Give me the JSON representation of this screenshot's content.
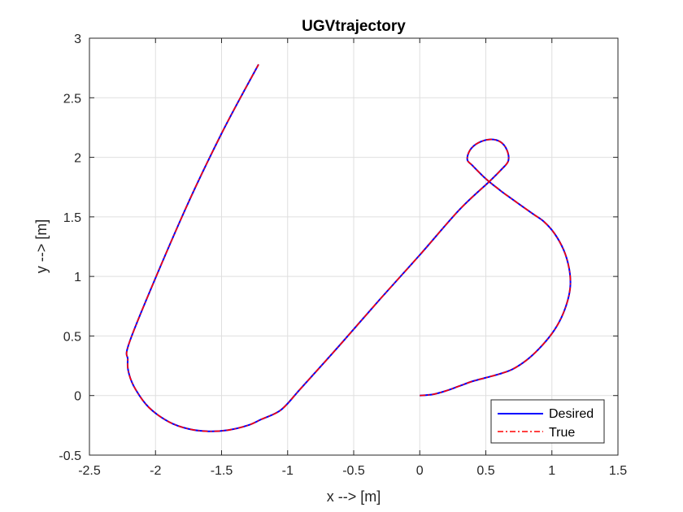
{
  "chart_data": {
    "type": "line",
    "title": "UGVtrajectory",
    "xlabel": "x --> [m]",
    "ylabel": "y --> [m]",
    "xlim": [
      -2.5,
      1.5
    ],
    "ylim": [
      -0.5,
      3
    ],
    "xticks": [
      -2.5,
      -2,
      -1.5,
      -1,
      -0.5,
      0,
      0.5,
      1,
      1.5
    ],
    "yticks": [
      -0.5,
      0,
      0.5,
      1,
      1.5,
      2,
      2.5,
      3
    ],
    "xtick_labels": [
      "-2.5",
      "-2",
      "-1.5",
      "-1",
      "-0.5",
      "0",
      "0.5",
      "1",
      "1.5"
    ],
    "ytick_labels": [
      "-0.5",
      "0",
      "0.5",
      "1",
      "1.5",
      "2",
      "2.5",
      "3"
    ],
    "grid": true,
    "legend_position": "bottom-right",
    "series": [
      {
        "name": "Desired",
        "color": "#0000ff",
        "style": "solid",
        "x": [
          0.0,
          0.1,
          0.2,
          0.3,
          0.4,
          0.5,
          0.6,
          0.7,
          0.8,
          0.9,
          1.0,
          1.07,
          1.12,
          1.14,
          1.13,
          1.09,
          1.02,
          0.94,
          0.85,
          0.66,
          0.6,
          0.5,
          0.4,
          0.36,
          0.38,
          0.44,
          0.53,
          0.61,
          0.66,
          0.67,
          0.62,
          0.53,
          0.3,
          0.0,
          -0.3,
          -0.6,
          -0.9,
          -1.05,
          -1.2,
          -1.3,
          -1.45,
          -1.6,
          -1.75,
          -1.9,
          -2.05,
          -2.15,
          -2.2,
          -2.21,
          -2.18,
          -1.8,
          -1.5,
          -1.22
        ],
        "y": [
          0.0,
          0.01,
          0.04,
          0.08,
          0.12,
          0.15,
          0.18,
          0.22,
          0.29,
          0.39,
          0.52,
          0.65,
          0.8,
          0.93,
          1.07,
          1.22,
          1.36,
          1.46,
          1.53,
          1.68,
          1.73,
          1.82,
          1.93,
          1.98,
          2.06,
          2.12,
          2.15,
          2.13,
          2.06,
          1.97,
          1.9,
          1.8,
          1.56,
          1.18,
          0.81,
          0.43,
          0.06,
          -0.12,
          -0.2,
          -0.25,
          -0.29,
          -0.3,
          -0.28,
          -0.22,
          -0.1,
          0.05,
          0.18,
          0.3,
          0.5,
          1.5,
          2.2,
          2.78
        ]
      },
      {
        "name": "True",
        "color": "#ff0000",
        "style": "dash-dot",
        "x": [
          0.0,
          0.1,
          0.2,
          0.3,
          0.4,
          0.5,
          0.6,
          0.7,
          0.8,
          0.9,
          1.0,
          1.07,
          1.12,
          1.14,
          1.13,
          1.09,
          1.02,
          0.94,
          0.85,
          0.66,
          0.6,
          0.5,
          0.4,
          0.36,
          0.38,
          0.44,
          0.53,
          0.61,
          0.66,
          0.67,
          0.62,
          0.53,
          0.3,
          0.0,
          -0.3,
          -0.6,
          -0.9,
          -1.05,
          -1.2,
          -1.3,
          -1.45,
          -1.6,
          -1.75,
          -1.9,
          -2.05,
          -2.15,
          -2.2,
          -2.21,
          -2.18,
          -1.8,
          -1.5,
          -1.22
        ],
        "y": [
          0.0,
          0.01,
          0.04,
          0.08,
          0.12,
          0.15,
          0.18,
          0.22,
          0.29,
          0.39,
          0.52,
          0.65,
          0.8,
          0.93,
          1.07,
          1.22,
          1.36,
          1.46,
          1.53,
          1.68,
          1.73,
          1.82,
          1.93,
          1.98,
          2.06,
          2.12,
          2.15,
          2.13,
          2.06,
          1.97,
          1.9,
          1.8,
          1.56,
          1.18,
          0.81,
          0.43,
          0.06,
          -0.12,
          -0.2,
          -0.25,
          -0.29,
          -0.3,
          -0.28,
          -0.22,
          -0.1,
          0.05,
          0.18,
          0.3,
          0.5,
          1.5,
          2.2,
          2.78
        ]
      }
    ]
  }
}
